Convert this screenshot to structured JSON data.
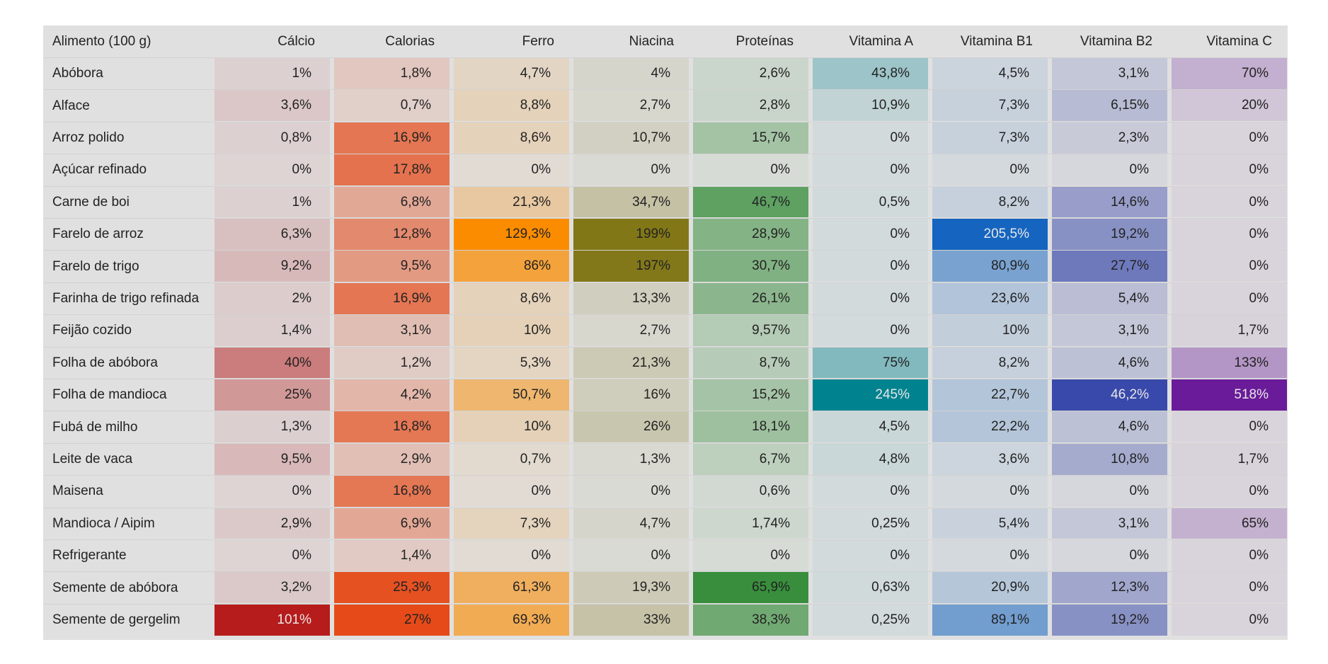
{
  "chart_data": {
    "type": "heatmap",
    "corner_label": "Alimento (100 g)",
    "columns": [
      "Cálcio",
      "Calorias",
      "Ferro",
      "Niacina",
      "Proteínas",
      "Vitamina A",
      "Vitamina B1",
      "Vitamina B2",
      "Vitamina C"
    ],
    "column_colors": [
      "#b71c1c",
      "#e64a19",
      "#fb8c00",
      "#827717",
      "#388e3c",
      "#00838f",
      "#1565c0",
      "#3949ab",
      "#6a1b9a"
    ],
    "rows": [
      {
        "label": "Abóbora",
        "values": [
          "1%",
          "1,8%",
          "4,7%",
          "4%",
          "2,6%",
          "43,8%",
          "4,5%",
          "3,1%",
          "70%"
        ],
        "num": [
          1,
          1.8,
          4.7,
          4,
          2.6,
          43.8,
          4.5,
          3.1,
          70
        ]
      },
      {
        "label": "Alface",
        "values": [
          "3,6%",
          "0,7%",
          "8,8%",
          "2,7%",
          "2,8%",
          "10,9%",
          "7,3%",
          "6,15%",
          "20%"
        ],
        "num": [
          3.6,
          0.7,
          8.8,
          2.7,
          2.8,
          10.9,
          7.3,
          6.15,
          20
        ]
      },
      {
        "label": "Arroz polido",
        "values": [
          "0,8%",
          "16,9%",
          "8,6%",
          "10,7%",
          "15,7%",
          "0%",
          "7,3%",
          "2,3%",
          "0%"
        ],
        "num": [
          0.8,
          16.9,
          8.6,
          10.7,
          15.7,
          0,
          7.3,
          2.3,
          0
        ]
      },
      {
        "label": "Açúcar refinado",
        "values": [
          "0%",
          "17,8%",
          "0%",
          "0%",
          "0%",
          "0%",
          "0%",
          "0%",
          "0%"
        ],
        "num": [
          0,
          17.8,
          0,
          0,
          0,
          0,
          0,
          0,
          0
        ]
      },
      {
        "label": "Carne de boi",
        "values": [
          "1%",
          "6,8%",
          "21,3%",
          "34,7%",
          "46,7%",
          "0,5%",
          "8,2%",
          "14,6%",
          "0%"
        ],
        "num": [
          1,
          6.8,
          21.3,
          34.7,
          46.7,
          0.5,
          8.2,
          14.6,
          0
        ]
      },
      {
        "label": "Farelo de arroz",
        "values": [
          "6,3%",
          "12,8%",
          "129,3%",
          "199%",
          "28,9%",
          "0%",
          "205,5%",
          "19,2%",
          "0%"
        ],
        "num": [
          6.3,
          12.8,
          129.3,
          199,
          28.9,
          0,
          205.5,
          19.2,
          0
        ]
      },
      {
        "label": "Farelo de trigo",
        "values": [
          "9,2%",
          "9,5%",
          "86%",
          "197%",
          "30,7%",
          "0%",
          "80,9%",
          "27,7%",
          "0%"
        ],
        "num": [
          9.2,
          9.5,
          86,
          197,
          30.7,
          0,
          80.9,
          27.7,
          0
        ]
      },
      {
        "label": "Farinha de trigo refinada",
        "values": [
          "2%",
          "16,9%",
          "8,6%",
          "13,3%",
          "26,1%",
          "0%",
          "23,6%",
          "5,4%",
          "0%"
        ],
        "num": [
          2,
          16.9,
          8.6,
          13.3,
          26.1,
          0,
          23.6,
          5.4,
          0
        ]
      },
      {
        "label": "Feijão cozido",
        "values": [
          "1,4%",
          "3,1%",
          "10%",
          "2,7%",
          "9,57%",
          "0%",
          "10%",
          "3,1%",
          "1,7%"
        ],
        "num": [
          1.4,
          3.1,
          10,
          2.7,
          9.57,
          0,
          10,
          3.1,
          1.7
        ]
      },
      {
        "label": "Folha de abóbora",
        "values": [
          "40%",
          "1,2%",
          "5,3%",
          "21,3%",
          "8,7%",
          "75%",
          "8,2%",
          "4,6%",
          "133%"
        ],
        "num": [
          40,
          1.2,
          5.3,
          21.3,
          8.7,
          75,
          8.2,
          4.6,
          133
        ]
      },
      {
        "label": "Folha de mandioca",
        "values": [
          "25%",
          "4,2%",
          "50,7%",
          "16%",
          "15,2%",
          "245%",
          "22,7%",
          "46,2%",
          "518%"
        ],
        "num": [
          25,
          4.2,
          50.7,
          16,
          15.2,
          245,
          22.7,
          46.2,
          518
        ]
      },
      {
        "label": "Fubá de milho",
        "values": [
          "1,3%",
          "16,8%",
          "10%",
          "26%",
          "18,1%",
          "4,5%",
          "22,2%",
          "4,6%",
          "0%"
        ],
        "num": [
          1.3,
          16.8,
          10,
          26,
          18.1,
          4.5,
          22.2,
          4.6,
          0
        ]
      },
      {
        "label": "Leite de vaca",
        "values": [
          "9,5%",
          "2,9%",
          "0,7%",
          "1,3%",
          "6,7%",
          "4,8%",
          "3,6%",
          "10,8%",
          "1,7%"
        ],
        "num": [
          9.5,
          2.9,
          0.7,
          1.3,
          6.7,
          4.8,
          3.6,
          10.8,
          1.7
        ]
      },
      {
        "label": "Maisena",
        "values": [
          "0%",
          "16,8%",
          "0%",
          "0%",
          "0,6%",
          "0%",
          "0%",
          "0%",
          "0%"
        ],
        "num": [
          0,
          16.8,
          0,
          0,
          0.6,
          0,
          0,
          0,
          0
        ]
      },
      {
        "label": "Mandioca / Aipim",
        "values": [
          "2,9%",
          "6,9%",
          "7,3%",
          "4,7%",
          "1,74%",
          "0,25%",
          "5,4%",
          "3,1%",
          "65%"
        ],
        "num": [
          2.9,
          6.9,
          7.3,
          4.7,
          1.74,
          0.25,
          5.4,
          3.1,
          65
        ]
      },
      {
        "label": "Refrigerante",
        "values": [
          "0%",
          "1,4%",
          "0%",
          "0%",
          "0%",
          "0%",
          "0%",
          "0%",
          "0%"
        ],
        "num": [
          0,
          1.4,
          0,
          0,
          0,
          0,
          0,
          0,
          0
        ]
      },
      {
        "label": "Semente de abóbora",
        "values": [
          "3,2%",
          "25,3%",
          "61,3%",
          "19,3%",
          "65,9%",
          "0,63%",
          "20,9%",
          "12,3%",
          "0%"
        ],
        "num": [
          3.2,
          25.3,
          61.3,
          19.3,
          65.9,
          0.63,
          20.9,
          12.3,
          0
        ]
      },
      {
        "label": "Semente de gergelim",
        "values": [
          "101%",
          "27%",
          "69,3%",
          "33%",
          "38,3%",
          "0,25%",
          "89,1%",
          "19,2%",
          "0%"
        ],
        "num": [
          101,
          27,
          69.3,
          33,
          38.3,
          0.25,
          89.1,
          19.2,
          0
        ]
      }
    ]
  }
}
